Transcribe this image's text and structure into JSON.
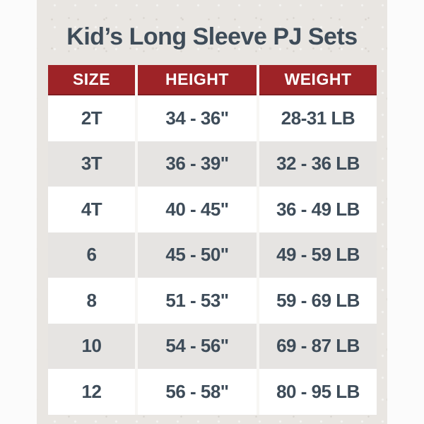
{
  "title": "Kid’s Long Sleeve PJ Sets",
  "chart_data": {
    "type": "table",
    "title": "Kid’s Long Sleeve PJ Sets",
    "columns": [
      "SIZE",
      "HEIGHT",
      "WEIGHT"
    ],
    "rows": [
      [
        "2T",
        "34 - 36\"",
        "28-31 LB"
      ],
      [
        "3T",
        "36 - 39\"",
        "32 - 36 LB"
      ],
      [
        "4T",
        "40 - 45\"",
        "36 - 49 LB"
      ],
      [
        "6",
        "45 - 50\"",
        "49 - 59 LB"
      ],
      [
        "8",
        "51 - 53\"",
        "59 - 69 LB"
      ],
      [
        "10",
        "54 - 56\"",
        "69 - 87 LB"
      ],
      [
        "12",
        "56 - 58\"",
        "80 - 95 LB"
      ]
    ],
    "layout": {
      "legend": "none",
      "grid": "off",
      "row_striping": "white-gray-alternating",
      "header_position": "top"
    }
  },
  "colors": {
    "page_bg": "#fbfbfb",
    "paper_bg": "#e9e6e2",
    "header_bg": "#9e2327",
    "header_bg_edge": "#801c20",
    "header_text": "#ffffff",
    "row_bg": "#ffffff",
    "row_alt_bg": "#e6e4e2",
    "cell_text": "#3e4c59",
    "title_text": "#3e4c59",
    "divider": "#f7f6f4"
  }
}
